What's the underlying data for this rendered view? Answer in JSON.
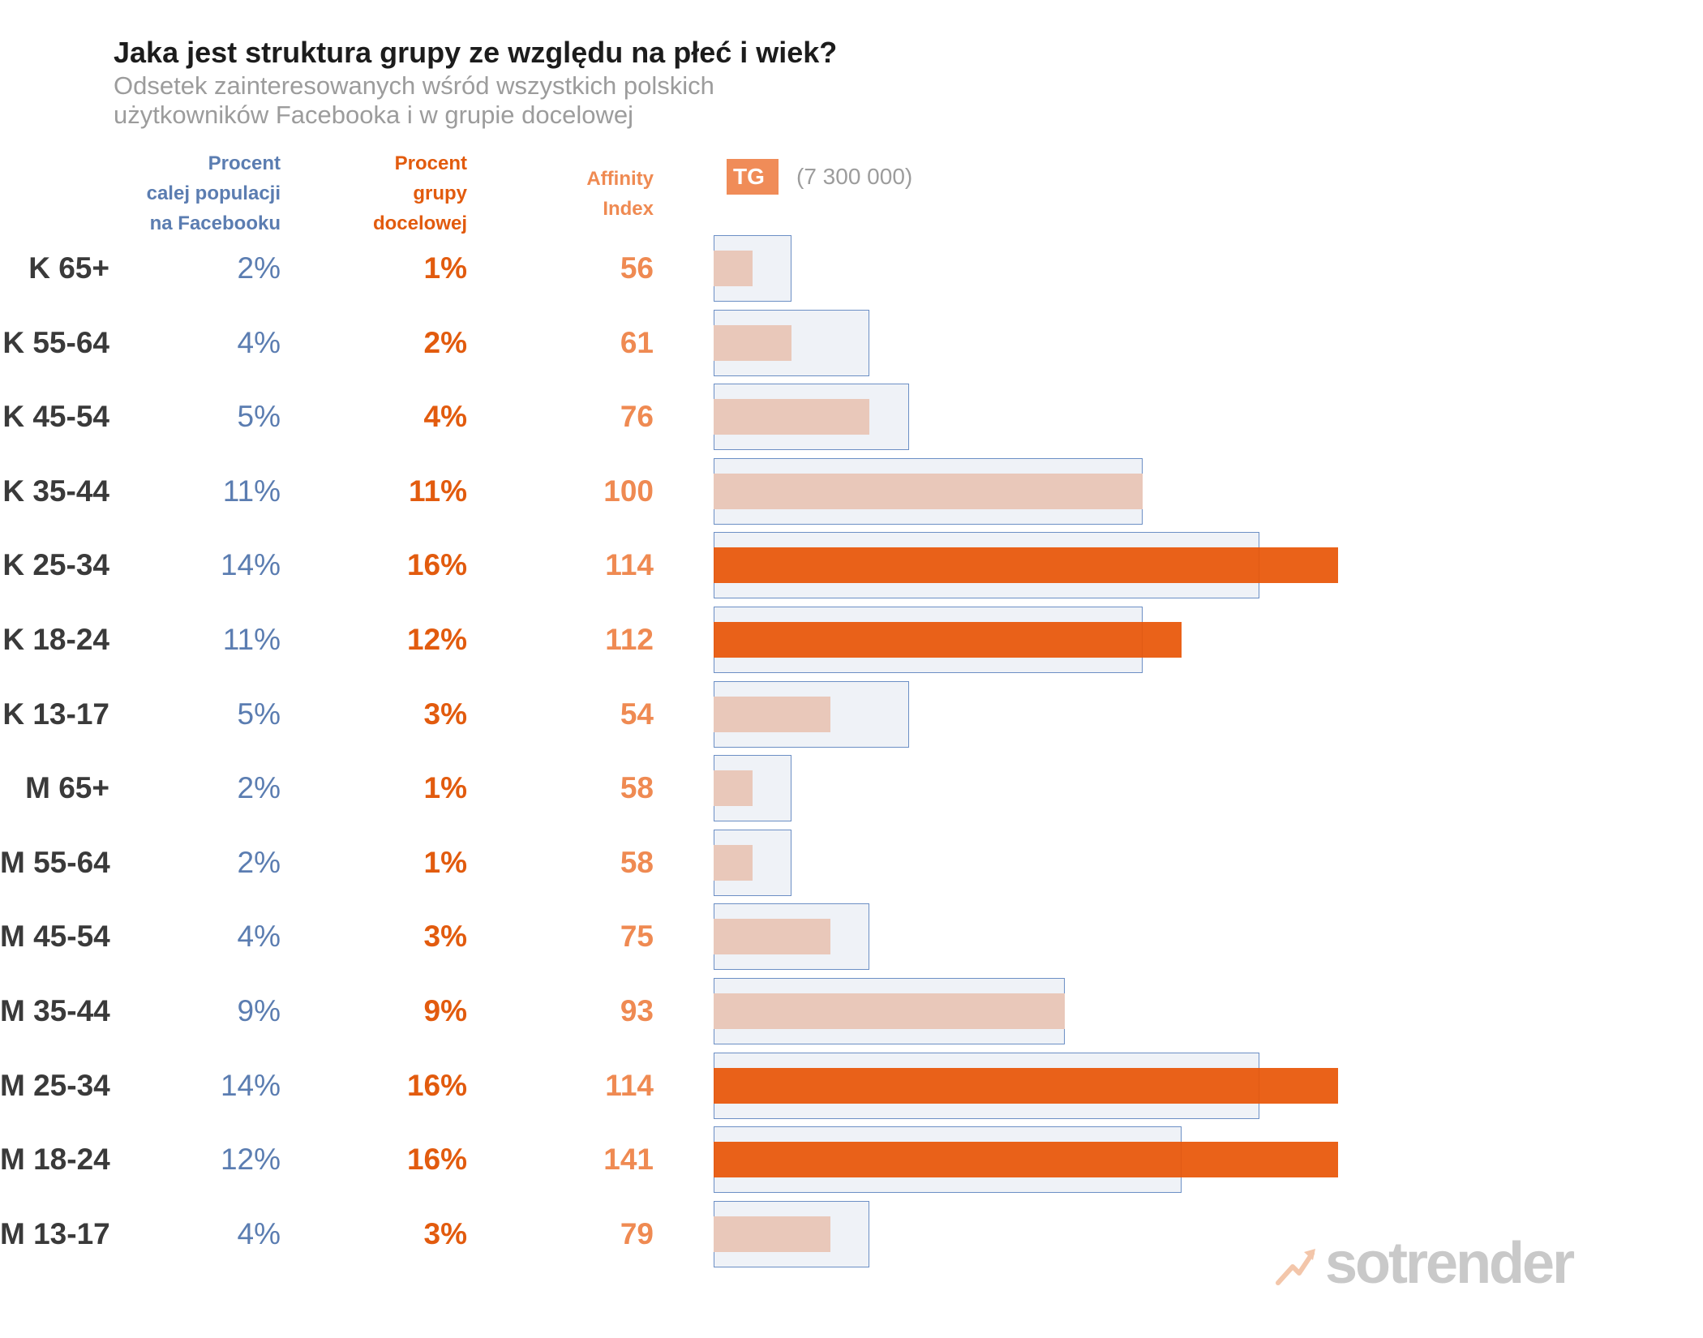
{
  "title": "Jaka jest struktura grupy ze względu na płeć i wiek?",
  "subtitle": [
    "Odsetek zainteresowanych wśród wszystkich polskich",
    "użytkowników Facebooka i w grupie docelowej"
  ],
  "columns": {
    "population": [
      "Procent",
      "calej populacji",
      "na Facebooku"
    ],
    "target": [
      "Procent",
      "grupy",
      "docelowej"
    ],
    "affinity": [
      "Affinity",
      "Index"
    ]
  },
  "tg_badge": "TG",
  "tg_count": "(7 300 000)",
  "logo_text": "sotrender",
  "colors": {
    "population": "#5b7db1",
    "target": "#e25b0e",
    "affinity": "#ef8a52",
    "tg_low": "#e9c8ba",
    "tg_high": "#e85608"
  },
  "chart_data": {
    "type": "bar",
    "orientation": "horizontal",
    "title": "Jaka jest struktura grupy ze względu na płeć i wiek?",
    "categories": [
      "K 65+",
      "K 55-64",
      "K 45-54",
      "K 35-44",
      "K 25-34",
      "K 18-24",
      "K 13-17",
      "M 65+",
      "M 55-64",
      "M 45-54",
      "M 35-44",
      "M 25-34",
      "M 18-24",
      "M 13-17"
    ],
    "series": [
      {
        "name": "Procent calej populacji na Facebooku",
        "values": [
          2,
          4,
          5,
          11,
          14,
          11,
          5,
          2,
          2,
          4,
          9,
          14,
          12,
          4
        ],
        "labels": [
          "2%",
          "4%",
          "5%",
          "11%",
          "14%",
          "11%",
          "5%",
          "2%",
          "2%",
          "4%",
          "9%",
          "14%",
          "12%",
          "4%"
        ]
      },
      {
        "name": "Procent grupy docelowej",
        "values": [
          1,
          2,
          4,
          11,
          16,
          12,
          3,
          1,
          1,
          3,
          9,
          16,
          16,
          3
        ],
        "labels": [
          "1%",
          "2%",
          "4%",
          "11%",
          "16%",
          "12%",
          "3%",
          "1%",
          "1%",
          "3%",
          "9%",
          "16%",
          "16%",
          "3%"
        ]
      },
      {
        "name": "Affinity Index",
        "values": [
          56,
          61,
          76,
          100,
          114,
          112,
          54,
          58,
          58,
          75,
          93,
          114,
          141,
          79
        ]
      }
    ],
    "xlim": [
      0,
      16
    ]
  }
}
